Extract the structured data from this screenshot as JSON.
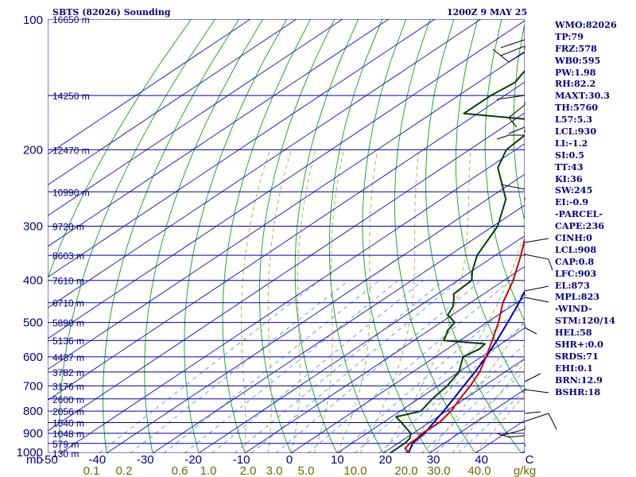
{
  "header": {
    "title_left": "SBTS (82026) Sounding",
    "title_right": "1200Z  9 MAY 25"
  },
  "stats": [
    "WMO:82026",
    "TP:79",
    "FRZ:578",
    "WB0:595",
    "PW:1.98",
    "RH:82.2",
    "MAXT:30.3",
    "TH:5760",
    "L57:5.3",
    "LCL:930",
    "LI:-1.2",
    "SI:0.5",
    "TT:43",
    "KI:36",
    "SW:245",
    "EI:-0.9",
    "-PARCEL-",
    "CAPE:236",
    "CINH:0",
    "LCL:908",
    "CAP:0.8",
    "LFC:903",
    "EL:873",
    "MPL:823",
    "-WIND-",
    "STM:120/14",
    "HEL:58",
    "SHR+:0.0",
    "SRDS:71",
    "EHI:0.1",
    "BRN:12.9",
    "BSHR:18"
  ],
  "colors": {
    "isobar": "#0000aa",
    "isotherm": "#2020c0",
    "dry_adiabat": "#22aa22",
    "moist_adiabat": "#b8b040",
    "mixing_ratio": "#50a8e0",
    "temperature": "#cc0000",
    "dewpoint": "#004000",
    "parcel": "#0000aa",
    "text": "#000080"
  },
  "chart_data": {
    "type": "line",
    "title": "SBTS (82026) Sounding",
    "xlabel": "",
    "ylabel": "mb",
    "xlim": [
      -50,
      50
    ],
    "ylim": [
      1000,
      100
    ],
    "y_scale": "log",
    "grid": true,
    "pressure_ticks": [
      "100",
      "200",
      "300",
      "400",
      "500",
      "600",
      "700",
      "800",
      "900",
      "1000"
    ],
    "pressure_values": [
      100,
      200,
      300,
      400,
      500,
      600,
      700,
      800,
      900,
      1000
    ],
    "temperature_ticks": [
      "-50",
      "-40",
      "-30",
      "-20",
      "-10",
      "0",
      "10",
      "20",
      "30",
      "40",
      "C"
    ],
    "mixing_ratio_ticks": [
      "0.1",
      "0.2",
      "0.6",
      "1.0",
      "2.0",
      "3.0",
      "5.0",
      "10.0",
      "20.0",
      "30.0",
      "40.0",
      "g/kg"
    ],
    "height_labels": [
      {
        "p": 100,
        "label": "16650 m"
      },
      {
        "p": 150,
        "label": "14250 m"
      },
      {
        "p": 200,
        "label": "12470 m"
      },
      {
        "p": 250,
        "label": "10990 m"
      },
      {
        "p": 300,
        "label": "9720 m"
      },
      {
        "p": 350,
        "label": "8603 m"
      },
      {
        "p": 400,
        "label": "7610 m"
      },
      {
        "p": 450,
        "label": "6710 m"
      },
      {
        "p": 500,
        "label": "5890 m"
      },
      {
        "p": 550,
        "label": "5136 m"
      },
      {
        "p": 600,
        "label": "4437 m"
      },
      {
        "p": 650,
        "label": "3782 m"
      },
      {
        "p": 700,
        "label": "3176 m"
      },
      {
        "p": 750,
        "label": "2600 m"
      },
      {
        "p": 800,
        "label": "2056 m"
      },
      {
        "p": 850,
        "label": "1540 m"
      },
      {
        "p": 900,
        "label": "1048 m"
      },
      {
        "p": 950,
        "label": "579 m"
      },
      {
        "p": 1000,
        "label": "130 m"
      }
    ],
    "series": [
      {
        "name": "Temperature",
        "points": [
          [
            1000,
            25.5
          ],
          [
            975,
            23.2
          ],
          [
            950,
            22.6
          ],
          [
            925,
            22.6
          ],
          [
            900,
            22.0
          ],
          [
            850,
            22.2
          ],
          [
            800,
            21.0
          ],
          [
            750,
            19.0
          ],
          [
            700,
            17.0
          ],
          [
            650,
            14.5
          ],
          [
            600,
            11.0
          ],
          [
            550,
            7.0
          ],
          [
            500,
            2.5
          ],
          [
            450,
            -3.0
          ],
          [
            400,
            -8.0
          ],
          [
            350,
            -14.5
          ],
          [
            300,
            -22.5
          ],
          [
            250,
            -33.0
          ],
          [
            200,
            -44.0
          ],
          [
            175,
            -49.5
          ],
          [
            160,
            -51.0
          ],
          [
            150,
            -50.0
          ],
          [
            130,
            -53.0
          ],
          [
            110,
            -60.0
          ],
          [
            100,
            -66.0
          ]
        ]
      },
      {
        "name": "Dewpoint",
        "points": [
          [
            1000,
            21.5
          ],
          [
            950,
            21.5
          ],
          [
            925,
            21.0
          ],
          [
            900,
            19.5
          ],
          [
            850,
            14.0
          ],
          [
            825,
            11.0
          ],
          [
            800,
            14.5
          ],
          [
            750,
            13.0
          ],
          [
            700,
            12.0
          ],
          [
            650,
            10.0
          ],
          [
            600,
            6.0
          ],
          [
            575,
            7.0
          ],
          [
            560,
            6.5
          ],
          [
            550,
            -3.5
          ],
          [
            520,
            -6.0
          ],
          [
            500,
            -7.0
          ],
          [
            480,
            -11.0
          ],
          [
            460,
            -12.5
          ],
          [
            440,
            -15.0
          ],
          [
            430,
            -16.5
          ],
          [
            400,
            -17.0
          ],
          [
            380,
            -20.0
          ],
          [
            350,
            -24.0
          ],
          [
            300,
            -29.0
          ],
          [
            260,
            -36.0
          ],
          [
            220,
            -48.0
          ],
          [
            200,
            -52.0
          ],
          [
            180,
            -53.0
          ],
          [
            170,
            -58.0
          ],
          [
            165,
            -73.0
          ],
          [
            150,
            -73.0
          ],
          [
            140,
            -72.0
          ],
          [
            130,
            -74.0
          ],
          [
            115,
            -75.0
          ],
          [
            100,
            -78.0
          ]
        ]
      },
      {
        "name": "Parcel",
        "points": [
          [
            1000,
            25.5
          ],
          [
            950,
            23.2
          ],
          [
            900,
            22.5
          ],
          [
            850,
            21.0
          ],
          [
            800,
            19.4
          ],
          [
            750,
            17.6
          ],
          [
            700,
            15.6
          ],
          [
            650,
            13.5
          ],
          [
            600,
            11.0
          ],
          [
            550,
            8.0
          ],
          [
            500,
            4.5
          ],
          [
            450,
            0.5
          ],
          [
            400,
            -4.3
          ],
          [
            350,
            -10.5
          ],
          [
            300,
            -18.5
          ],
          [
            250,
            -28.0
          ],
          [
            200,
            -40.0
          ],
          [
            150,
            -53.0
          ],
          [
            100,
            -68.0
          ]
        ]
      }
    ]
  }
}
